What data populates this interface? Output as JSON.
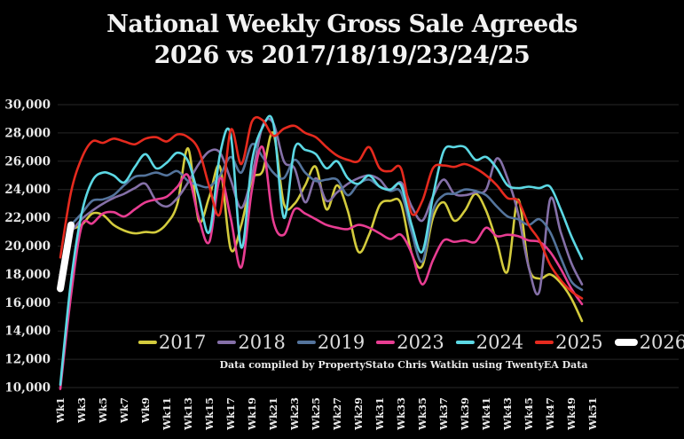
{
  "title": {
    "line1": "National Weekly Gross Sale Agreeds",
    "line2": "2026 vs 2017/18/19/23/24/25"
  },
  "caption": "Data compiled by PropertyStato Chris Watkin using TwentyEA Data",
  "colors": {
    "background": "#000000",
    "gridline": "#272727",
    "axis_text": "#e9e9e9",
    "title_text": "#f2f2f2",
    "legend_text": "#dedede"
  },
  "chart_data": {
    "type": "line",
    "title": "National Weekly Gross Sale Agreeds 2026 vs 2017/18/19/23/24/25",
    "xlabel": "",
    "ylabel": "",
    "ylim": [
      10000,
      30000
    ],
    "grid": true,
    "legend_position": "bottom",
    "y_ticks": [
      10000,
      12000,
      14000,
      16000,
      18000,
      20000,
      22000,
      24000,
      26000,
      28000,
      30000
    ],
    "y_tick_labels": [
      "10,000",
      "12,000",
      "14,000",
      "16,000",
      "18,000",
      "20,000",
      "22,000",
      "24,000",
      "26,000",
      "28,000",
      "30,000"
    ],
    "x_tick_labels": [
      "Wk1",
      "Wk3",
      "Wk5",
      "Wk7",
      "Wk9",
      "Wk11",
      "Wk13",
      "Wk15",
      "Wk17",
      "Wk19",
      "Wk21",
      "Wk23",
      "Wk25",
      "Wk27",
      "Wk29",
      "Wk31",
      "Wk33",
      "Wk35",
      "Wk37",
      "Wk39",
      "Wk41",
      "Wk43",
      "Wk45",
      "Wk47",
      "Wk49",
      "Wk51"
    ],
    "x_unit": "week",
    "x_step": 1,
    "series": [
      {
        "name": "2017",
        "color": "#d3cb3d",
        "start_week": 2,
        "line_width": 2.6,
        "values": [
          21200,
          21500,
          22300,
          22200,
          21500,
          21100,
          20900,
          21000,
          21000,
          21600,
          23000,
          26900,
          21800,
          23500,
          25600,
          19800,
          21500,
          24700,
          25300,
          28000,
          23000,
          23000,
          24300,
          25600,
          22600,
          24300,
          22500,
          19600,
          20800,
          22900,
          23200,
          23000,
          19500,
          18600,
          22000,
          23100,
          21800,
          22500,
          23700,
          22500,
          20300,
          18200,
          23300,
          18500,
          17700,
          18000,
          17400,
          16300,
          14700
        ]
      },
      {
        "name": "2018",
        "color": "#8570a8",
        "start_week": 2,
        "line_width": 2.6,
        "values": [
          21000,
          21900,
          22500,
          23000,
          23400,
          23700,
          24100,
          24400,
          23200,
          22800,
          23400,
          24500,
          25800,
          26700,
          26600,
          24700,
          22700,
          25000,
          28500,
          28700,
          26000,
          25500,
          23100,
          24800,
          23200,
          23800,
          24400,
          24800,
          25000,
          24700,
          23900,
          24500,
          22800,
          21800,
          23500,
          24700,
          23700,
          23600,
          23800,
          24000,
          26200,
          24800,
          22300,
          18500,
          16800,
          23300,
          21000,
          18800,
          17300
        ]
      },
      {
        "name": "2019",
        "color": "#54749c",
        "start_week": 2,
        "line_width": 2.6,
        "values": [
          21500,
          22300,
          23200,
          23300,
          23600,
          24300,
          24900,
          25000,
          25200,
          25000,
          25300,
          24600,
          24300,
          24200,
          25000,
          26300,
          25200,
          27200,
          26300,
          25200,
          24800,
          26100,
          25200,
          24600,
          24700,
          24700,
          23600,
          24400,
          24700,
          24200,
          23900,
          23800,
          21000,
          18900,
          22500,
          23600,
          23700,
          24000,
          23900,
          23600,
          22800,
          22100,
          21900,
          21500,
          21900,
          21000,
          19200,
          17500,
          16900
        ]
      },
      {
        "name": "2023",
        "color": "#e83d92",
        "start_week": 1,
        "line_width": 2.6,
        "values": [
          9900,
          16500,
          21400,
          21600,
          22300,
          22400,
          22100,
          22600,
          23100,
          23300,
          23500,
          24200,
          25000,
          22000,
          20300,
          24800,
          22000,
          18500,
          24000,
          27000,
          21800,
          20800,
          22600,
          22300,
          21900,
          21500,
          21300,
          21200,
          21500,
          21300,
          20900,
          20500,
          20800,
          19500,
          17300,
          19000,
          20400,
          20300,
          20400,
          20300,
          21300,
          20700,
          20800,
          20700,
          20400,
          20300,
          19600,
          18400,
          17000,
          15900
        ]
      },
      {
        "name": "2024",
        "color": "#5cd8e4",
        "start_week": 1,
        "line_width": 2.6,
        "values": [
          10200,
          17500,
          22300,
          24600,
          25200,
          25000,
          24500,
          25600,
          26500,
          25500,
          25900,
          26600,
          26000,
          23500,
          21000,
          26500,
          27900,
          19900,
          26000,
          28400,
          28700,
          22000,
          26900,
          26800,
          26500,
          25500,
          26000,
          24800,
          24400,
          25000,
          24200,
          24000,
          24300,
          21500,
          19600,
          23500,
          26700,
          27000,
          27000,
          26100,
          26300,
          25500,
          24300,
          24100,
          24200,
          24100,
          24200,
          22600,
          20700,
          19100
        ]
      },
      {
        "name": "2025",
        "color": "#e52a1e",
        "start_week": 1,
        "line_width": 2.6,
        "values": [
          19200,
          23800,
          26200,
          27400,
          27300,
          27600,
          27400,
          27200,
          27600,
          27700,
          27400,
          27900,
          27700,
          26800,
          24200,
          22300,
          28200,
          25800,
          28800,
          28900,
          27800,
          28300,
          28500,
          28000,
          27700,
          27000,
          26400,
          26100,
          26000,
          27000,
          25500,
          25300,
          25500,
          22300,
          23200,
          25500,
          25700,
          25600,
          25800,
          25500,
          25000,
          24300,
          23400,
          23200,
          21500,
          20400,
          18700,
          17600,
          16800,
          16300
        ]
      },
      {
        "name": "2026",
        "color": "#ffffff",
        "start_week": 1,
        "line_width": 8,
        "values": [
          17000,
          21500
        ]
      }
    ]
  }
}
